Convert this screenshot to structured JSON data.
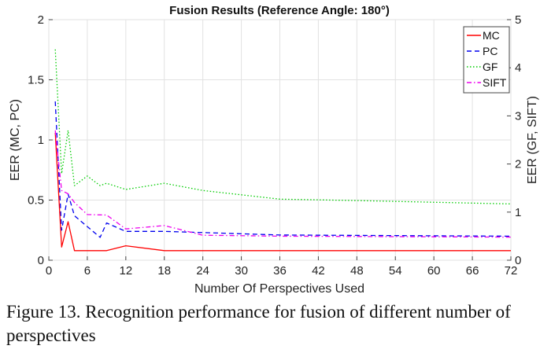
{
  "chart_data": {
    "type": "line",
    "title": "Fusion Results (Reference Angle: 180°)",
    "xlabel": "Number Of Perspectives Used",
    "ylabel_left": "EER (MC, PC)",
    "ylabel_right": "EER (GF, SIFT)",
    "xlim": [
      0,
      72
    ],
    "ylim_left": [
      0,
      2
    ],
    "ylim_right": [
      0,
      5
    ],
    "xticks": [
      0,
      6,
      12,
      18,
      24,
      30,
      36,
      42,
      48,
      54,
      60,
      66,
      72
    ],
    "yticks_left": [
      "0",
      "0.5",
      "1",
      "1.5",
      "2"
    ],
    "yticks_left_values": [
      0,
      0.5,
      1,
      1.5,
      2
    ],
    "yticks_right": [
      "0",
      "1",
      "2",
      "3",
      "4",
      "5"
    ],
    "yticks_right_values": [
      0,
      1,
      2,
      3,
      4,
      5
    ],
    "grid": true,
    "legend_position": "top-right",
    "series": [
      {
        "name": "MC",
        "axis": "left",
        "color": "#ff0000",
        "dash": "solid",
        "x": [
          1,
          2,
          3,
          4,
          6,
          9,
          12,
          18,
          24,
          36,
          72
        ],
        "y": [
          1.06,
          0.11,
          0.32,
          0.08,
          0.08,
          0.08,
          0.12,
          0.08,
          0.08,
          0.08,
          0.08
        ]
      },
      {
        "name": "PC",
        "axis": "left",
        "color": "#0000ee",
        "dash": "dashed",
        "x": [
          1,
          2,
          3,
          4,
          6,
          8,
          9,
          12,
          18,
          24,
          36,
          72
        ],
        "y": [
          1.32,
          0.25,
          0.55,
          0.37,
          0.28,
          0.19,
          0.31,
          0.24,
          0.24,
          0.23,
          0.21,
          0.2
        ]
      },
      {
        "name": "GF",
        "axis": "right",
        "color": "#00cc00",
        "dash": "dotted",
        "x": [
          1,
          2,
          3,
          4,
          6,
          8,
          9,
          12,
          18,
          24,
          36,
          48,
          72
        ],
        "y": [
          4.38,
          1.8,
          2.7,
          1.55,
          1.75,
          1.55,
          1.6,
          1.47,
          1.6,
          1.45,
          1.27,
          1.24,
          1.17
        ]
      },
      {
        "name": "SIFT",
        "axis": "right",
        "color": "#ee00ee",
        "dash": "dashdot",
        "x": [
          1,
          2,
          3,
          4,
          6,
          9,
          12,
          18,
          24,
          36,
          72
        ],
        "y": [
          2.7,
          1.45,
          1.38,
          1.2,
          0.95,
          0.94,
          0.65,
          0.72,
          0.52,
          0.5,
          0.48
        ]
      }
    ]
  },
  "caption": "Figure 13. Recognition performance for fusion of different number of perspectives"
}
